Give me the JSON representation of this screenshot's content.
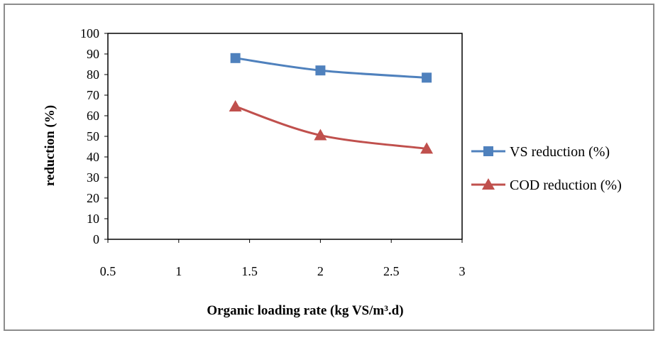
{
  "chart_data": {
    "type": "line",
    "title": "",
    "xlabel": "Organic loading rate (kg VS/m³.d)",
    "ylabel": "reduction (%)",
    "xlim": [
      0.5,
      3
    ],
    "ylim": [
      0,
      100
    ],
    "xticks": [
      "0.5",
      "1",
      "1.5",
      "2",
      "2.5",
      "3"
    ],
    "yticks": [
      "0",
      "10",
      "20",
      "30",
      "40",
      "50",
      "60",
      "70",
      "80",
      "90",
      "100"
    ],
    "grid": false,
    "legend_position": "right",
    "series": [
      {
        "name": "VS reduction (%)",
        "marker": "square",
        "color": "#4F81BD",
        "x": [
          1.4,
          2.0,
          2.75
        ],
        "y": [
          88,
          82,
          78.5
        ]
      },
      {
        "name": "COD reduction (%)",
        "marker": "triangle",
        "color": "#C0504D",
        "x": [
          1.4,
          2.0,
          2.75
        ],
        "y": [
          64.5,
          50.5,
          44
        ]
      }
    ]
  }
}
